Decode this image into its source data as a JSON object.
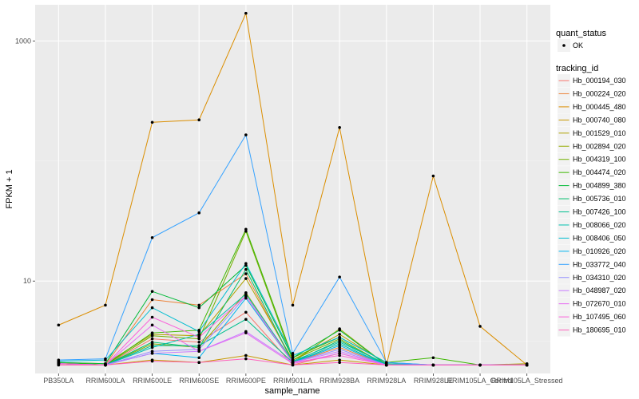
{
  "chart_data": {
    "type": "line",
    "title": "",
    "xlabel": "sample_name",
    "ylabel": "FPKM + 1",
    "y_scale": "log10",
    "ylim": [
      1.7,
      2000
    ],
    "y_ticks": [
      10,
      1000
    ],
    "y_tick_labels": [
      "10",
      "1000"
    ],
    "categories": [
      "PB350LA",
      "RRIM600LA",
      "RRIM600LE",
      "RRIM600SE",
      "RRIM600PE",
      "RRIM901LA",
      "RRIM928BA",
      "RRIM928LA",
      "RRIM928LE",
      "RRIM105LA_Control",
      "RRIM105LA_Stressed"
    ],
    "legend_quant": {
      "title": "quant_status",
      "entries": [
        "OK"
      ]
    },
    "legend_tracking": {
      "title": "tracking_id"
    },
    "series": [
      {
        "name": "Hb_000194_030",
        "color": "#F8766D",
        "values": [
          2.05,
          2.0,
          3.3,
          3.1,
          5.5,
          2.0,
          2.5,
          2.0,
          2.0,
          2.0,
          2.0
        ]
      },
      {
        "name": "Hb_000224_020",
        "color": "#EC8239",
        "values": [
          2.1,
          2.0,
          7.0,
          6.3,
          11.5,
          2.1,
          2.8,
          2.0,
          2.0,
          2.0,
          2.0
        ]
      },
      {
        "name": "Hb_000445_480",
        "color": "#DB8E00",
        "values": [
          4.3,
          6.3,
          210,
          220,
          1700,
          6.3,
          190,
          2.0,
          75,
          4.2,
          2.0
        ]
      },
      {
        "name": "Hb_000740_080",
        "color": "#C79800",
        "values": [
          2.0,
          2.0,
          2.2,
          2.1,
          2.4,
          2.0,
          2.2,
          2.0,
          2.0,
          2.0,
          2.0
        ]
      },
      {
        "name": "Hb_001529_010",
        "color": "#AFA100",
        "values": [
          2.1,
          2.05,
          3.6,
          3.5,
          10.5,
          2.2,
          3.6,
          2.05,
          2.0,
          2.0,
          2.05
        ]
      },
      {
        "name": "Hb_002894_020",
        "color": "#94AA00",
        "values": [
          2.05,
          2.0,
          3.0,
          2.8,
          8.0,
          2.1,
          4.0,
          2.0,
          2.0,
          2.0,
          2.0
        ]
      },
      {
        "name": "Hb_004319_100",
        "color": "#72B000",
        "values": [
          2.05,
          2.0,
          3.5,
          3.3,
          26,
          2.2,
          3.3,
          2.0,
          2.0,
          2.0,
          2.0
        ]
      },
      {
        "name": "Hb_004474_020",
        "color": "#3DB700",
        "values": [
          2.1,
          2.0,
          3.7,
          3.9,
          27,
          2.3,
          3.4,
          2.1,
          2.3,
          2.0,
          2.0
        ]
      },
      {
        "name": "Hb_004899_380",
        "color": "#00BA38",
        "values": [
          2.1,
          2.05,
          8.2,
          6.0,
          13.5,
          2.3,
          3.9,
          2.0,
          2.0,
          2.0,
          2.0
        ]
      },
      {
        "name": "Hb_005736_010",
        "color": "#00BE6C",
        "values": [
          2.05,
          2.0,
          3.1,
          2.8,
          12.5,
          2.1,
          3.2,
          2.0,
          2.0,
          2.0,
          2.0
        ]
      },
      {
        "name": "Hb_007426_100",
        "color": "#00BF8F",
        "values": [
          2.05,
          2.0,
          2.9,
          2.9,
          4.8,
          2.1,
          3.0,
          2.0,
          2.0,
          2.0,
          2.0
        ]
      },
      {
        "name": "Hb_008066_020",
        "color": "#00C0AF",
        "values": [
          2.05,
          2.0,
          2.8,
          3.6,
          7.8,
          2.15,
          3.1,
          2.05,
          2.0,
          2.0,
          2.0
        ]
      },
      {
        "name": "Hb_008406_050",
        "color": "#00BDD0",
        "values": [
          2.15,
          2.2,
          6.0,
          3.8,
          14,
          2.4,
          3.4,
          2.1,
          2.0,
          2.0,
          2.0
        ]
      },
      {
        "name": "Hb_010926_020",
        "color": "#00B4EF",
        "values": [
          2.05,
          2.0,
          2.5,
          2.3,
          7.2,
          2.1,
          2.9,
          2.0,
          2.0,
          2.0,
          2.0
        ]
      },
      {
        "name": "Hb_033772_040",
        "color": "#35A2FF",
        "values": [
          2.2,
          2.25,
          23,
          37,
          165,
          2.5,
          10.8,
          2.1,
          2.0,
          2.0,
          2.0
        ]
      },
      {
        "name": "Hb_034310_020",
        "color": "#9590FF",
        "values": [
          2.05,
          2.0,
          2.6,
          2.7,
          7.5,
          2.1,
          2.7,
          2.0,
          2.0,
          2.0,
          2.0
        ]
      },
      {
        "name": "Hb_048987_020",
        "color": "#C77CFF",
        "values": [
          2.05,
          2.0,
          2.5,
          2.6,
          3.8,
          2.1,
          2.6,
          2.0,
          2.0,
          2.0,
          2.0
        ]
      },
      {
        "name": "Hb_072670_010",
        "color": "#E76BF3",
        "values": [
          2.05,
          2.0,
          4.3,
          2.6,
          3.7,
          2.05,
          2.5,
          2.0,
          2.0,
          2.0,
          2.0
        ]
      },
      {
        "name": "Hb_107495_060",
        "color": "#FA62DB",
        "values": [
          2.05,
          2.0,
          5.0,
          3.4,
          7.5,
          2.1,
          2.4,
          2.0,
          2.0,
          2.0,
          2.0
        ]
      },
      {
        "name": "Hb_180695_010",
        "color": "#FF62BC",
        "values": [
          2.0,
          2.0,
          2.15,
          2.1,
          2.25,
          2.0,
          2.1,
          2.0,
          2.0,
          2.0,
          2.0
        ]
      }
    ]
  }
}
